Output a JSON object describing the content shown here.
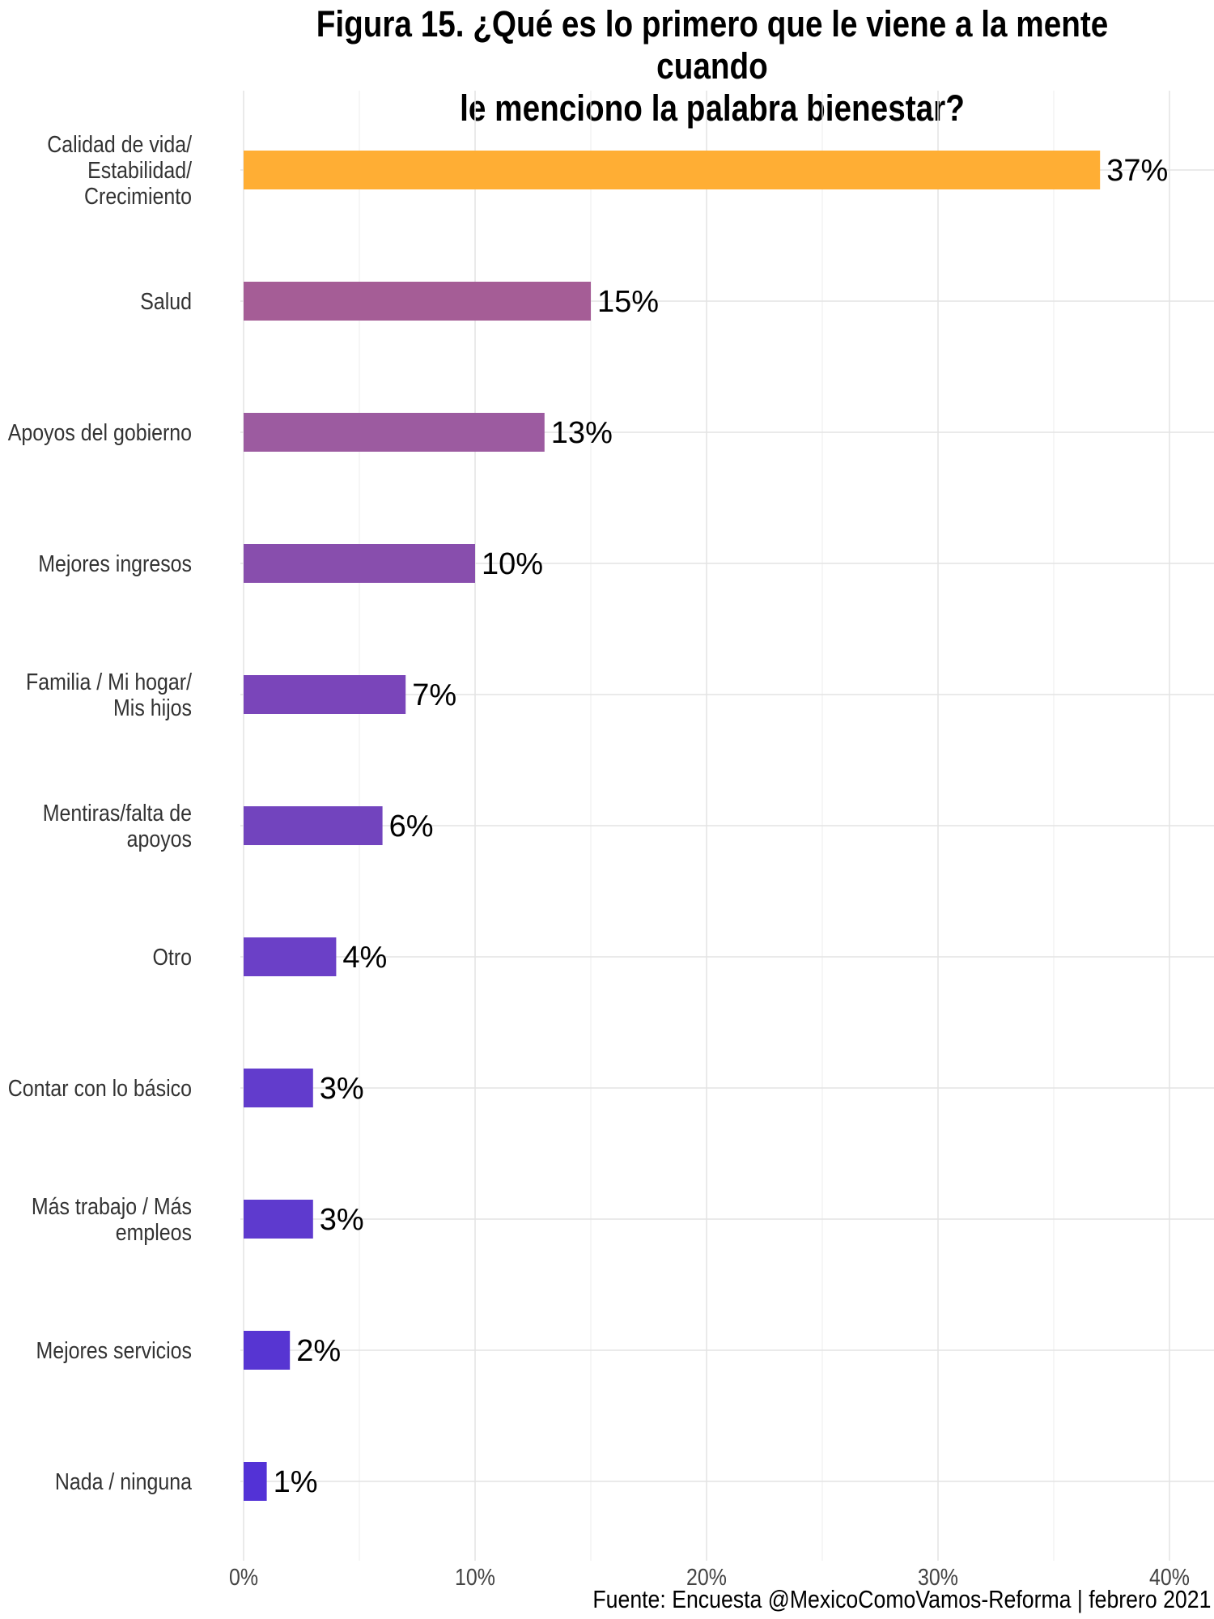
{
  "chart_data": {
    "type": "bar",
    "orientation": "horizontal",
    "title_line1": "Figura 15. ¿Qué es lo primero que le viene a la mente cuando",
    "title_line2": "le menciono la palabra bienestar?",
    "categories": [
      [
        "Calidad de vida/",
        "Estabilidad/",
        "Crecimiento"
      ],
      [
        "Salud"
      ],
      [
        "Apoyos del gobierno"
      ],
      [
        "Mejores ingresos"
      ],
      [
        "Familia / Mi hogar/",
        "Mis hijos"
      ],
      [
        "Mentiras/falta de",
        "apoyos"
      ],
      [
        "Otro"
      ],
      [
        "Contar con lo básico"
      ],
      [
        "Más trabajo / Más",
        "empleos"
      ],
      [
        "Mejores servicios"
      ],
      [
        "Nada / ninguna"
      ]
    ],
    "values": [
      37,
      15,
      13,
      10,
      7,
      6,
      4,
      3,
      3,
      2,
      1
    ],
    "value_labels": [
      "37%",
      "15%",
      "13%",
      "10%",
      "7%",
      "6%",
      "4%",
      "3%",
      "3%",
      "2%",
      "1%"
    ],
    "colors": [
      "#FFAE34",
      "#A55D96",
      "#9C5BA0",
      "#884EAD",
      "#7A45BA",
      "#7244BE",
      "#6B40C7",
      "#623CCC",
      "#5E3ACE",
      "#5735D2",
      "#5332D6"
    ],
    "xlim": [
      0,
      42
    ],
    "xticks": [
      0,
      10,
      20,
      30,
      40
    ],
    "xtick_labels": [
      "0%",
      "10%",
      "20%",
      "30%",
      "40%"
    ],
    "grid": true,
    "source": "Fuente: Encuesta @MexicoComoVamos-Reforma | febrero 2021"
  }
}
